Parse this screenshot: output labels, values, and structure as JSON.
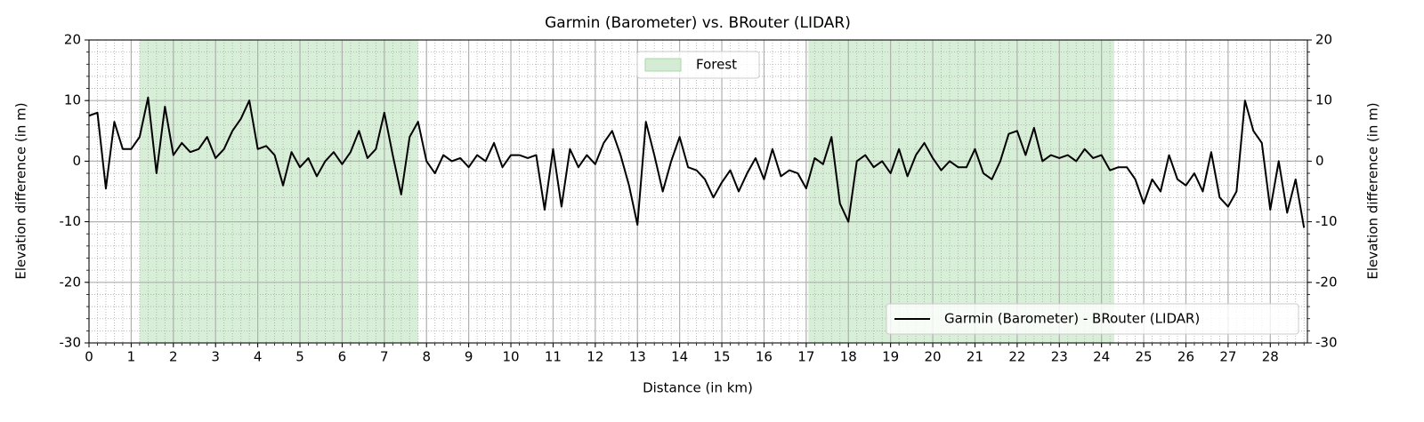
{
  "chart_data": {
    "type": "line",
    "title": "Garmin (Barometer) vs. BRouter (LIDAR)",
    "xlabel": "Distance (in km)",
    "ylabel": "Elevation difference (in m)",
    "y2label": "Elevation difference (in m)",
    "xlim": [
      0,
      28.88
    ],
    "ylim": [
      -30,
      20
    ],
    "y2lim": [
      -30,
      20
    ],
    "xticks": [
      0,
      1,
      2,
      3,
      4,
      5,
      6,
      7,
      8,
      9,
      10,
      11,
      12,
      13,
      14,
      15,
      16,
      17,
      18,
      19,
      20,
      21,
      22,
      23,
      24,
      25,
      26,
      27,
      28
    ],
    "yticks": [
      -30,
      -20,
      -10,
      0,
      10,
      20
    ],
    "y2ticks": [
      -30,
      -20,
      -10,
      0,
      10,
      20
    ],
    "grid": true,
    "minor_grid_step_x": 0.2,
    "minor_grid_step_y": 2,
    "x": [
      0,
      0.2,
      0.4,
      0.6,
      0.8,
      1,
      1.2,
      1.4,
      1.6,
      1.8,
      2,
      2.2,
      2.4,
      2.6,
      2.8,
      3,
      3.2,
      3.4,
      3.6,
      3.8,
      4,
      4.2,
      4.4,
      4.6,
      4.8,
      5,
      5.2,
      5.4,
      5.6,
      5.8,
      6,
      6.2,
      6.4,
      6.6,
      6.8,
      7,
      7.2,
      7.4,
      7.6,
      7.8,
      8,
      8.2,
      8.4,
      8.6,
      8.8,
      9,
      9.2,
      9.4,
      9.6,
      9.8,
      10,
      10.2,
      10.4,
      10.6,
      10.8,
      11,
      11.2,
      11.4,
      11.6,
      11.8,
      12,
      12.2,
      12.4,
      12.6,
      12.8,
      13,
      13.2,
      13.4,
      13.6,
      13.8,
      14,
      14.2,
      14.4,
      14.6,
      14.8,
      15,
      15.2,
      15.4,
      15.6,
      15.8,
      16,
      16.2,
      16.4,
      16.6,
      16.8,
      17,
      17.2,
      17.4,
      17.6,
      17.8,
      18,
      18.2,
      18.4,
      18.6,
      18.8,
      19,
      19.2,
      19.4,
      19.6,
      19.8,
      20,
      20.2,
      20.4,
      20.6,
      20.8,
      21,
      21.2,
      21.4,
      21.6,
      21.8,
      22,
      22.2,
      22.4,
      22.6,
      22.8,
      23,
      23.2,
      23.4,
      23.6,
      23.8,
      24,
      24.2,
      24.4,
      24.6,
      24.8,
      25,
      25.2,
      25.4,
      25.6,
      25.8,
      26,
      26.2,
      26.4,
      26.6,
      26.8,
      27,
      27.2,
      27.4,
      27.6,
      27.8,
      28,
      28.2,
      28.4,
      28.6,
      28.8
    ],
    "series": [
      {
        "name": "Garmin (Barometer) - BRouter (LIDAR)",
        "color": "#000000",
        "axis": "y",
        "values": [
          7.5,
          8,
          -4.5,
          6.5,
          2,
          2,
          4,
          10.5,
          -2,
          9,
          1,
          3,
          1.5,
          2,
          4,
          0.5,
          2,
          5,
          7,
          10,
          2,
          2.5,
          1,
          -4,
          1.5,
          -1,
          0.5,
          -2.5,
          0,
          1.5,
          -0.5,
          1.5,
          5,
          0.5,
          2,
          8,
          1,
          -5.5,
          4,
          6.5,
          0,
          -2,
          1,
          0,
          0.5,
          -1,
          1,
          0,
          3,
          -1,
          1,
          1,
          0.5,
          1,
          -8,
          2,
          -7.5,
          2,
          -1,
          1,
          -0.5,
          3,
          5,
          1,
          -4,
          -10.5,
          6.5,
          1,
          -5,
          0,
          4,
          -1,
          -1.5,
          -3,
          -6,
          -3.5,
          -1.5,
          -5,
          -2,
          0.5,
          -3,
          2,
          -2.5,
          -1.5,
          -2,
          -4.5,
          0.5,
          -0.5,
          4,
          -7,
          -10,
          0,
          1,
          -1,
          0,
          -2,
          2,
          -2.5,
          1,
          3,
          0.5,
          -1.5,
          0,
          -1,
          -1,
          2,
          -2,
          -3,
          0,
          4.5,
          5,
          1,
          5.5,
          0,
          1,
          0.5,
          1,
          0,
          2,
          0.5,
          1,
          -1.5,
          -1,
          -1,
          -3,
          -7,
          -3,
          -5,
          1,
          -3,
          -4,
          -2,
          -5,
          1.5,
          -6,
          -7.5,
          -5,
          10,
          5,
          3,
          -8,
          0,
          -8.5,
          -3,
          -11
        ]
      }
    ],
    "shaded_regions": {
      "label": "Forest",
      "color": "#d3ecd3",
      "edge_color": "#a8d8a8",
      "spans": [
        [
          1.2,
          7.8
        ],
        [
          17.05,
          24.3
        ]
      ],
      "legend_loc": "upper center"
    },
    "legend_loc": "lower right"
  }
}
